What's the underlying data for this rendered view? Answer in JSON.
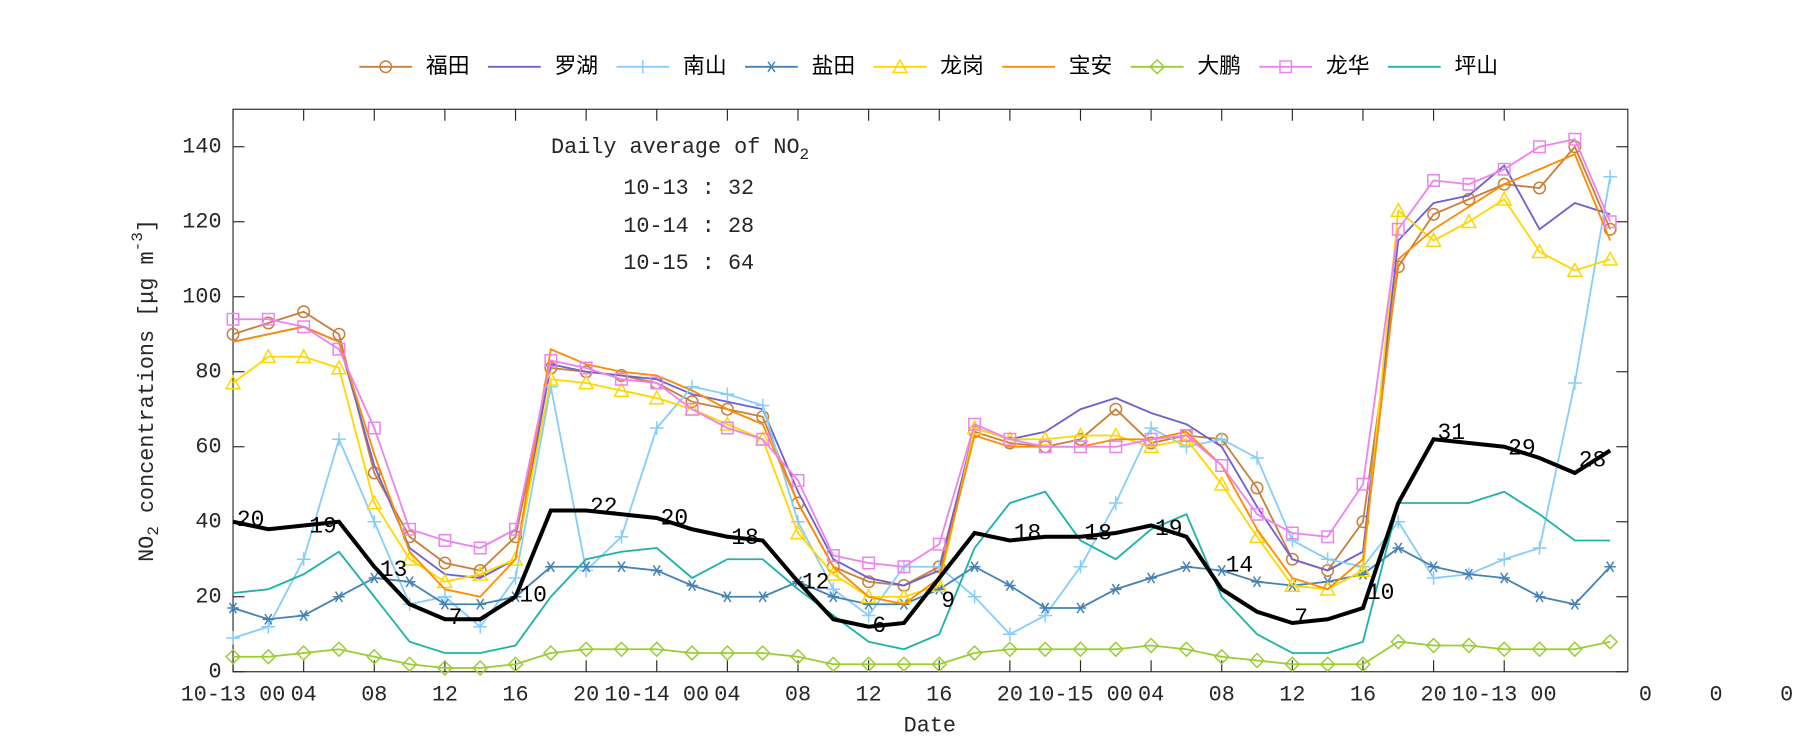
{
  "chart_data": {
    "type": "line",
    "xlabel": "Date",
    "ylabel": {
      "text": "NO",
      "sub": "2",
      "rest": " concentrations [μg m",
      "sup": "-3",
      "end": "]"
    },
    "note": {
      "title": "Daily average of NO",
      "title_sub": "2",
      "rows": [
        "10-13 : 32",
        "10-14 : 28",
        "10-15 : 64"
      ]
    },
    "xlim": [
      0,
      79
    ],
    "ylim": [
      0,
      150
    ],
    "yticks": [
      0,
      20,
      40,
      60,
      80,
      100,
      120,
      140
    ],
    "xticks": [
      {
        "value": 0,
        "label": "10-13 00"
      },
      {
        "value": 4,
        "label": "04"
      },
      {
        "value": 8,
        "label": "08"
      },
      12,
      16,
      20,
      {
        "value": 24,
        "label": "10-14 00"
      },
      {
        "value": 28,
        "label": "04"
      },
      {
        "value": 32,
        "label": "08"
      },
      {
        "value": 36,
        "label": "12"
      },
      {
        "value": 40,
        "label": "16"
      },
      {
        "value": 44,
        "label": "20"
      },
      {
        "value": 48,
        "label": "10-15 00"
      },
      {
        "value": 52,
        "label": "04"
      },
      {
        "value": 56,
        "label": "08"
      },
      {
        "value": 60,
        "label": "12"
      },
      {
        "value": 64,
        "label": "16"
      },
      {
        "value": 68,
        "label": "20"
      },
      {
        "value": 72,
        "label": "10-13 00"
      },
      {
        "value": 80,
        "label": "0"
      },
      {
        "value": 84,
        "label": "0"
      },
      {
        "value": 88,
        "label": "0"
      }
    ],
    "x": [
      0,
      2,
      4,
      6,
      8,
      10,
      12,
      14,
      16,
      18,
      20,
      22,
      24,
      26,
      28,
      30,
      32,
      34,
      36,
      38,
      40,
      42,
      44,
      46,
      48,
      50,
      52,
      54,
      56,
      58,
      60,
      62,
      64,
      66,
      68,
      70,
      72,
      74,
      76,
      78
    ],
    "series": [
      {
        "name": "福田",
        "color": "#c8803c",
        "marker": "circle",
        "values": [
          90,
          93,
          96,
          90,
          53,
          36,
          29,
          27,
          36,
          81,
          80,
          79,
          77,
          72,
          70,
          68,
          45,
          28,
          24,
          23,
          28,
          64,
          61,
          60,
          62,
          70,
          61,
          63,
          62,
          49,
          30,
          27,
          40,
          108,
          122,
          126,
          130,
          129,
          140,
          118
        ]
      },
      {
        "name": "罗湖",
        "color": "#7060d0",
        "marker": "none",
        "values": [
          88,
          90,
          92,
          88,
          55,
          33,
          26,
          25,
          30,
          82,
          80,
          79,
          78,
          74,
          72,
          70,
          48,
          30,
          25,
          23,
          27,
          65,
          62,
          64,
          70,
          73,
          69,
          66,
          60,
          44,
          30,
          27,
          32,
          115,
          125,
          127,
          135,
          118,
          125,
          122
        ]
      },
      {
        "name": "南山",
        "color": "#87cefa",
        "marker": "plus",
        "values": [
          9,
          12,
          30,
          62,
          40,
          18,
          20,
          12,
          25,
          76,
          27,
          36,
          65,
          76,
          74,
          71,
          40,
          22,
          15,
          28,
          28,
          20,
          10,
          15,
          28,
          45,
          65,
          60,
          62,
          57,
          35,
          30,
          28,
          40,
          25,
          26,
          30,
          33,
          77,
          132
        ]
      },
      {
        "name": "盐田",
        "color": "#4682b4",
        "marker": "asterisk",
        "values": [
          17,
          14,
          15,
          20,
          25,
          24,
          18,
          18,
          20,
          28,
          28,
          28,
          27,
          23,
          20,
          20,
          24,
          20,
          18,
          18,
          22,
          28,
          23,
          17,
          17,
          22,
          25,
          28,
          27,
          24,
          23,
          24,
          26,
          33,
          28,
          26,
          25,
          20,
          18,
          28
        ]
      },
      {
        "name": "龙岗",
        "color": "#ffd700",
        "marker": "triangle",
        "values": [
          77,
          84,
          84,
          81,
          45,
          30,
          24,
          26,
          30,
          78,
          77,
          75,
          73,
          70,
          66,
          62,
          37,
          26,
          20,
          20,
          23,
          65,
          62,
          62,
          63,
          63,
          60,
          62,
          50,
          36,
          23,
          22,
          27,
          123,
          115,
          120,
          126,
          112,
          107,
          110
        ]
      },
      {
        "name": "宝安",
        "color": "#ff8c00",
        "marker": "none",
        "values": [
          88,
          90,
          92,
          88,
          58,
          32,
          22,
          20,
          30,
          86,
          82,
          80,
          79,
          75,
          70,
          66,
          45,
          28,
          20,
          18,
          25,
          63,
          60,
          60,
          60,
          62,
          62,
          64,
          55,
          38,
          25,
          22,
          30,
          110,
          118,
          124,
          130,
          134,
          138,
          115
        ]
      },
      {
        "name": "大鹏",
        "color": "#9acd32",
        "marker": "diamond",
        "values": [
          4,
          4,
          5,
          6,
          4,
          2,
          1,
          1,
          2,
          5,
          6,
          6,
          6,
          5,
          5,
          5,
          4,
          2,
          2,
          2,
          2,
          5,
          6,
          6,
          6,
          6,
          7,
          6,
          4,
          3,
          2,
          2,
          2,
          8,
          7,
          7,
          6,
          6,
          6,
          8
        ]
      },
      {
        "name": "龙华",
        "color": "#ee82ee",
        "marker": "square",
        "values": [
          94,
          94,
          92,
          86,
          65,
          38,
          35,
          33,
          38,
          83,
          81,
          78,
          77,
          70,
          65,
          62,
          51,
          31,
          29,
          28,
          34,
          66,
          62,
          60,
          60,
          60,
          62,
          63,
          55,
          42,
          37,
          36,
          50,
          118,
          131,
          130,
          134,
          140,
          142,
          120
        ]
      },
      {
        "name": "坪山",
        "color": "#20b2aa",
        "marker": "none",
        "values": [
          21,
          22,
          26,
          32,
          20,
          8,
          5,
          5,
          7,
          20,
          30,
          32,
          33,
          25,
          30,
          30,
          22,
          15,
          8,
          6,
          10,
          33,
          45,
          48,
          35,
          30,
          38,
          42,
          20,
          10,
          5,
          5,
          8,
          45,
          45,
          45,
          48,
          42,
          35,
          35
        ]
      }
    ],
    "average": {
      "color": "#000000",
      "values": [
        40,
        38,
        39,
        40,
        28,
        18,
        14,
        14,
        20,
        43,
        43,
        42,
        41,
        38,
        36,
        35,
        24,
        14,
        12,
        13,
        25,
        37,
        35,
        36,
        36,
        37,
        39,
        36,
        22,
        16,
        13,
        14,
        17,
        45,
        62,
        61,
        60,
        57,
        53,
        59
      ]
    },
    "annotations": [
      {
        "text": "20",
        "x": 1,
        "y": 40.5
      },
      {
        "text": "19",
        "x": 5.1,
        "y": 38.7
      },
      {
        "text": "13",
        "x": 9.1,
        "y": 27.1
      },
      {
        "text": "7",
        "x": 12.6,
        "y": 14.3
      },
      {
        "text": "10",
        "x": 17,
        "y": 20.4
      },
      {
        "text": "22",
        "x": 21,
        "y": 43.9
      },
      {
        "text": "20",
        "x": 25,
        "y": 40.9
      },
      {
        "text": "18",
        "x": 29,
        "y": 35.7
      },
      {
        "text": "12",
        "x": 33,
        "y": 23.8
      },
      {
        "text": "6",
        "x": 36.6,
        "y": 12.2
      },
      {
        "text": "9",
        "x": 40.5,
        "y": 18.9
      },
      {
        "text": "18",
        "x": 45,
        "y": 36.9
      },
      {
        "text": "18",
        "x": 49,
        "y": 36.9
      },
      {
        "text": "19",
        "x": 53,
        "y": 38.1
      },
      {
        "text": "14",
        "x": 57,
        "y": 28.4
      },
      {
        "text": "7",
        "x": 60.5,
        "y": 14.3
      },
      {
        "text": "10",
        "x": 65,
        "y": 21
      },
      {
        "text": "31",
        "x": 69,
        "y": 63.7
      },
      {
        "text": "29",
        "x": 73,
        "y": 59.5
      },
      {
        "text": "28",
        "x": 77,
        "y": 56.4
      }
    ],
    "legend": "top"
  }
}
